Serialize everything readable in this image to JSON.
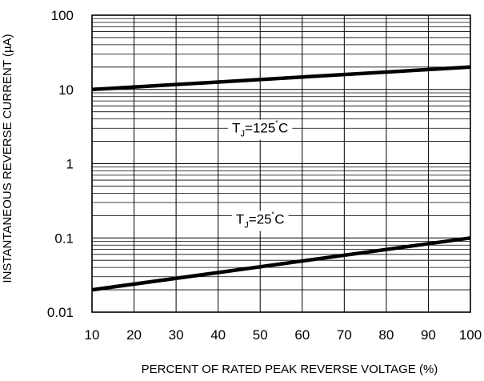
{
  "chart_data": {
    "type": "line",
    "title": "",
    "xlabel": "PERCENT OF RATED PEAK REVERSE VOLTAGE (%)",
    "ylabel": "INSTANTANEOUS REVERSE CURRENT (µA)",
    "xlim": [
      10,
      100
    ],
    "ylim": [
      0.01,
      100
    ],
    "yscale": "log",
    "grid": true,
    "x_ticks": [
      "10",
      "20",
      "30",
      "40",
      "50",
      "60",
      "70",
      "80",
      "90",
      "100"
    ],
    "y_ticks": [
      "100",
      "10",
      "1",
      "0.1",
      "0.01"
    ],
    "series": [
      {
        "name": "TJ=125˚C",
        "x": [
          10,
          100
        ],
        "y": [
          10,
          20
        ]
      },
      {
        "name": "TJ=25˚C",
        "x": [
          10,
          100
        ],
        "y": [
          0.02,
          0.1
        ]
      }
    ],
    "annotations": [
      {
        "main": "T",
        "sub": "J",
        "rest": "=125",
        "deg": "˚",
        "unit": "C",
        "x": 50,
        "y": 3.05
      },
      {
        "main": "T",
        "sub": "J",
        "rest": "=25",
        "deg": "˚",
        "unit": "C",
        "x": 50,
        "y": 0.18
      }
    ]
  }
}
